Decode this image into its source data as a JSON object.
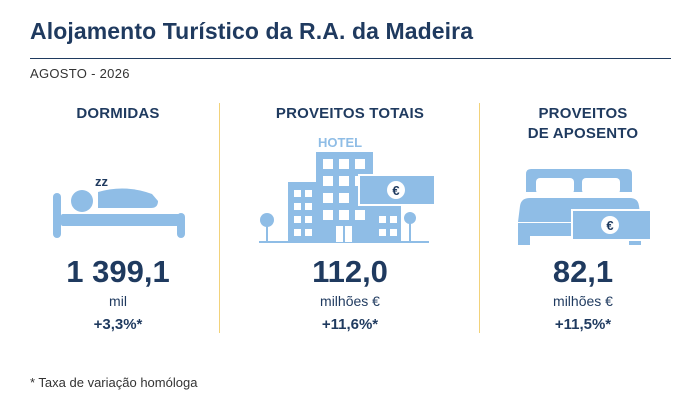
{
  "title": "Alojamento Turístico da R.A. da Madeira",
  "subtitle": "AGOSTO - 2026",
  "footnote": "* Taxa de variação homóloga",
  "accent_color": "#8fbde6",
  "text_color": "#1f3a5f",
  "separator_color": "#f2d27a",
  "metrics": [
    {
      "label": "DORMIDAS",
      "value": "1 399,1",
      "unit": "mil",
      "change": "+3,3%*",
      "icon": "sleeping-person-icon"
    },
    {
      "label": "PROVEITOS TOTAIS",
      "value": "112,0",
      "unit": "milhões €",
      "change": "+11,6%*",
      "icon": "hotel-icon",
      "icon_text": "HOTEL",
      "currency": "€"
    },
    {
      "label_line1": "PROVEITOS",
      "label_line2": "DE APOSENTO",
      "value": "82,1",
      "unit": "milhões €",
      "change": "+11,5%*",
      "icon": "bed-money-icon",
      "currency": "€"
    }
  ],
  "sleep_letters": "zz"
}
